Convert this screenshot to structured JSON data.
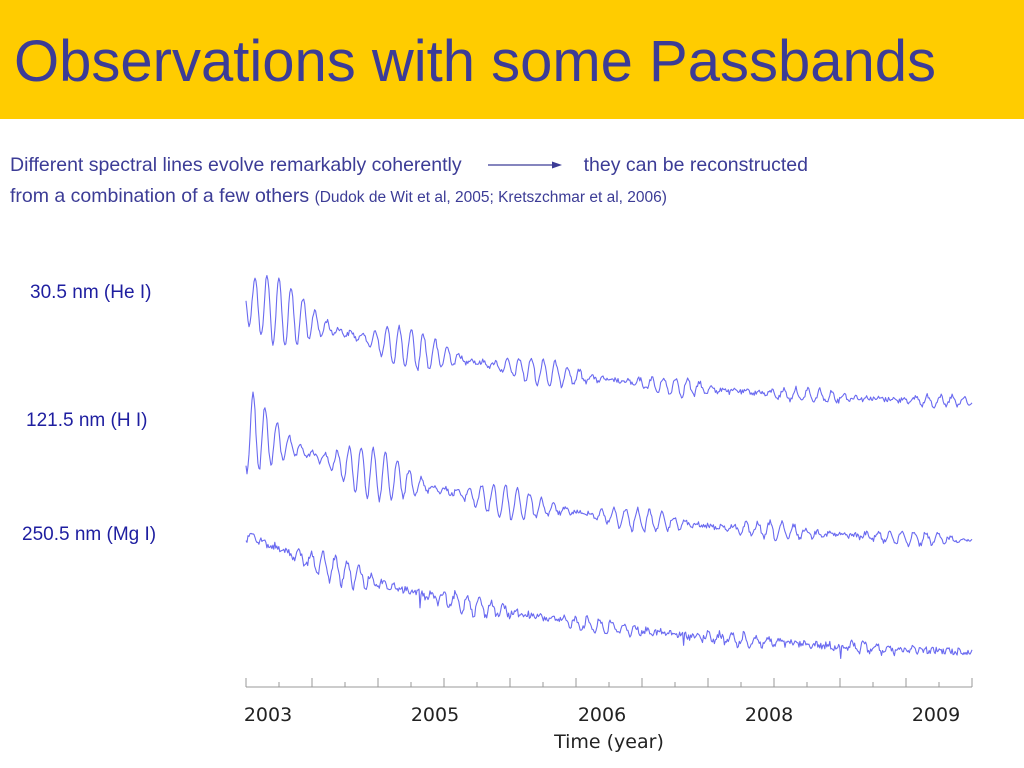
{
  "slide": {
    "title": "Observations with some Passbands",
    "intro_part1": "Different spectral lines evolve remarkably coherently",
    "intro_part2": "they can be reconstructed",
    "intro_part3": "from a combination of a few others",
    "intro_refs": "(Dudok de Wit et al, 2005; Kretszchmar et al, 2006)",
    "colors": {
      "header_bg": "#FFCC00",
      "title_text": "#3C3C96",
      "series_line": "#6A6AF0",
      "label_text": "#1E1EA0"
    }
  },
  "chart_data": {
    "type": "line",
    "xlabel": "Time  (year)",
    "x_tick_labels": [
      "2003",
      "2005",
      "2006",
      "2008",
      "2009"
    ],
    "grid": false,
    "y_axis": "none (series vertically offset)",
    "series": [
      {
        "name": "30.5 nm (He I)",
        "trend": "strongly decaying, large oscillations early"
      },
      {
        "name": "121.5 nm (H I)",
        "trend": "decaying, large oscillations early"
      },
      {
        "name": "250.5 nm (Mg I)",
        "trend": "decaying with smaller oscillations"
      }
    ]
  }
}
